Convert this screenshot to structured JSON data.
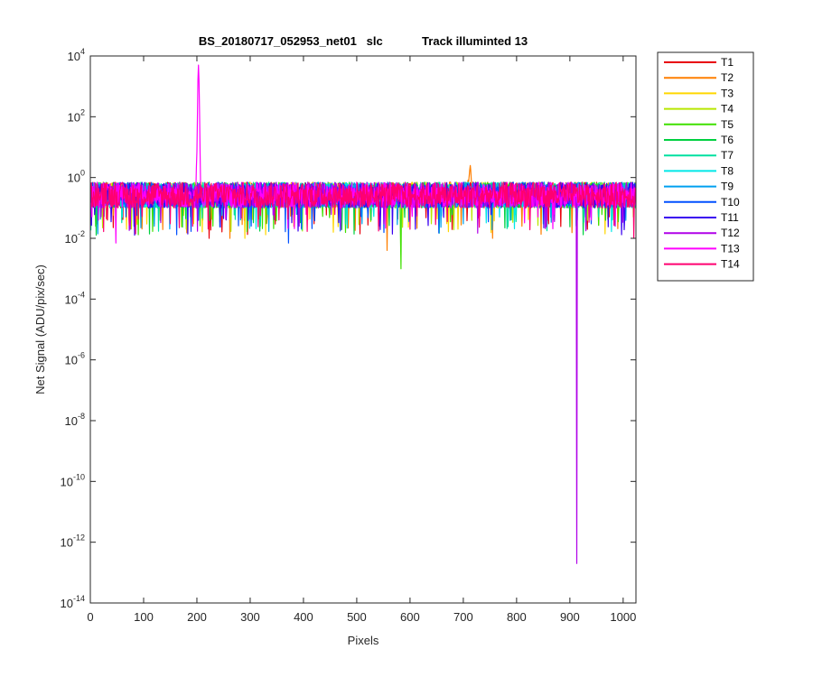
{
  "chart_data": {
    "type": "line",
    "title": "BS_20180717_052953_net01   slc            Track illuminted 13",
    "xlabel": "Pixels",
    "ylabel": "Net Signal (ADU/pix/sec)",
    "xlim": [
      0,
      1024
    ],
    "ylim": [
      1e-14,
      10000
    ],
    "yscale": "log",
    "grid": false,
    "legend_position": "outside-right",
    "x_ticks": [
      0,
      100,
      200,
      300,
      400,
      500,
      600,
      700,
      800,
      900,
      1000
    ],
    "y_ticks": [
      {
        "base": "10",
        "exp": "4",
        "value": 10000
      },
      {
        "base": "10",
        "exp": "2",
        "value": 100
      },
      {
        "base": "10",
        "exp": "0",
        "value": 1
      },
      {
        "base": "10",
        "exp": "-2",
        "value": 0.01
      },
      {
        "base": "10",
        "exp": "-4",
        "value": 0.0001
      },
      {
        "base": "10",
        "exp": "-6",
        "value": 1e-06
      },
      {
        "base": "10",
        "exp": "-8",
        "value": 1e-08
      },
      {
        "base": "10",
        "exp": "-10",
        "value": 1e-10
      },
      {
        "base": "10",
        "exp": "-12",
        "value": 1e-12
      },
      {
        "base": "10",
        "exp": "-14",
        "value": 1e-14
      }
    ],
    "noise_band": [
      0.1,
      0.7
    ],
    "series": [
      {
        "name": "T1",
        "color": "#e8000b",
        "dips": [
          [
            223,
            0.01
          ],
          [
            420,
            0.03
          ],
          [
            860,
            0.03
          ]
        ]
      },
      {
        "name": "T2",
        "color": "#ff7f00",
        "dips": [
          [
            262,
            0.01
          ],
          [
            557,
            0.004
          ],
          [
            755,
            0.01
          ]
        ],
        "peaks": [
          [
            713,
            2.5
          ]
        ]
      },
      {
        "name": "T3",
        "color": "#ffd700",
        "dips": [
          [
            290,
            0.01
          ],
          [
            690,
            0.02
          ]
        ]
      },
      {
        "name": "T4",
        "color": "#b8e600",
        "dips": [
          [
            180,
            0.02
          ],
          [
            640,
            0.03
          ]
        ]
      },
      {
        "name": "T5",
        "color": "#3fe000",
        "dips": [
          [
            583,
            0.001
          ],
          [
            330,
            0.03
          ]
        ]
      },
      {
        "name": "T6",
        "color": "#00d040",
        "dips": [
          [
            120,
            0.03
          ],
          [
            790,
            0.04
          ]
        ]
      },
      {
        "name": "T7",
        "color": "#00e0a0",
        "dips": [
          [
            470,
            0.03
          ],
          [
            980,
            0.04
          ]
        ]
      },
      {
        "name": "T8",
        "color": "#00e8e8",
        "dips": [
          [
            60,
            0.05
          ],
          [
            850,
            0.03
          ]
        ]
      },
      {
        "name": "T9",
        "color": "#00a0f0",
        "dips": [
          [
            510,
            0.03
          ],
          [
            700,
            0.03
          ]
        ]
      },
      {
        "name": "T10",
        "color": "#0050ff",
        "dips": [
          [
            372,
            0.007
          ],
          [
            940,
            0.03
          ]
        ]
      },
      {
        "name": "T11",
        "color": "#3a00f0",
        "dips": [
          [
            610,
            0.02
          ],
          [
            255,
            0.04
          ]
        ]
      },
      {
        "name": "T12",
        "color": "#b000e8",
        "dips": [
          [
            913,
            2e-13
          ],
          [
            75,
            0.02
          ]
        ]
      },
      {
        "name": "T13",
        "color": "#ff00ff",
        "peaks": [
          [
            203,
            5000
          ]
        ],
        "dips": [
          [
            48,
            0.007
          ]
        ]
      },
      {
        "name": "T14",
        "color": "#ff0070",
        "dips": [
          [
            1020,
            0.01
          ],
          [
            150,
            0.03
          ],
          [
            600,
            0.02
          ]
        ]
      }
    ]
  }
}
